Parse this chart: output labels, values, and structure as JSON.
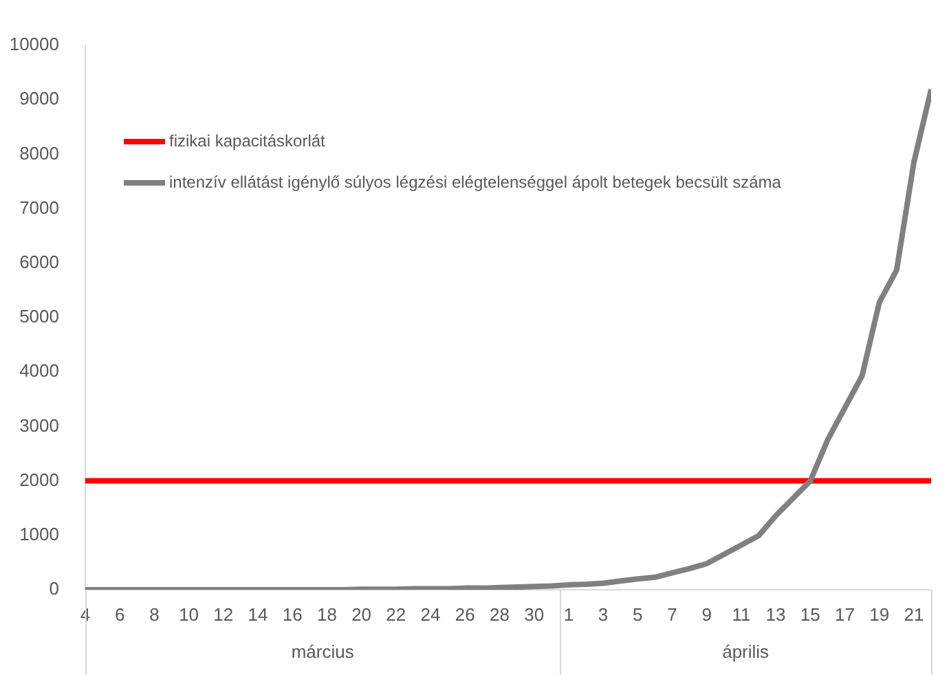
{
  "chart_data": {
    "type": "line",
    "x": [
      "--03-04",
      "--03-05",
      "--03-06",
      "--03-07",
      "--03-08",
      "--03-09",
      "--03-10",
      "--03-11",
      "--03-12",
      "--03-13",
      "--03-14",
      "--03-15",
      "--03-16",
      "--03-17",
      "--03-18",
      "--03-19",
      "--03-20",
      "--03-21",
      "--03-22",
      "--03-23",
      "--03-24",
      "--03-25",
      "--03-26",
      "--03-27",
      "--03-28",
      "--03-29",
      "--03-30",
      "--03-31",
      "--04-01",
      "--04-02",
      "--04-03",
      "--04-04",
      "--04-05",
      "--04-06",
      "--04-07",
      "--04-08",
      "--04-09",
      "--04-10",
      "--04-11",
      "--04-12",
      "--04-13",
      "--04-14",
      "--04-15",
      "--04-16",
      "--04-17",
      "--04-18",
      "--04-19",
      "--04-20",
      "--04-21",
      "--04-22"
    ],
    "series": [
      {
        "name": "fizikai kapacitáskorlát",
        "color": "#ff0000",
        "values": [
          2000,
          2000,
          2000,
          2000,
          2000,
          2000,
          2000,
          2000,
          2000,
          2000,
          2000,
          2000,
          2000,
          2000,
          2000,
          2000,
          2000,
          2000,
          2000,
          2000,
          2000,
          2000,
          2000,
          2000,
          2000,
          2000,
          2000,
          2000,
          2000,
          2000,
          2000,
          2000,
          2000,
          2000,
          2000,
          2000,
          2000,
          2000,
          2000,
          2000,
          2000,
          2000,
          2000,
          2000,
          2000,
          2000,
          2000,
          2000,
          2000,
          2000
        ]
      },
      {
        "name": "intenzív ellátást igénylő súlyos légzési elégtelenséggel ápolt betegek becsült száma",
        "color": "#808080",
        "values": [
          0,
          0,
          0,
          0,
          0,
          0,
          0,
          0,
          0,
          0,
          0,
          0,
          0,
          0,
          0,
          0,
          10,
          10,
          10,
          20,
          20,
          20,
          30,
          30,
          40,
          50,
          60,
          70,
          90,
          100,
          120,
          160,
          200,
          230,
          310,
          390,
          480,
          650,
          820,
          990,
          1360,
          1680,
          2000,
          2750,
          3340,
          3930,
          5280,
          5870,
          7850,
          9190
        ]
      }
    ],
    "xlim": [
      "--03-04",
      "--04-22"
    ],
    "xticks": [
      {
        "value": "--03-04",
        "label": "4"
      },
      {
        "value": "--03-06",
        "label": "6"
      },
      {
        "value": "--03-08",
        "label": "8"
      },
      {
        "value": "--03-10",
        "label": "10"
      },
      {
        "value": "--03-12",
        "label": "12"
      },
      {
        "value": "--03-14",
        "label": "14"
      },
      {
        "value": "--03-16",
        "label": "16"
      },
      {
        "value": "--03-18",
        "label": "18"
      },
      {
        "value": "--03-20",
        "label": "20"
      },
      {
        "value": "--03-22",
        "label": "22"
      },
      {
        "value": "--03-24",
        "label": "24"
      },
      {
        "value": "--03-26",
        "label": "26"
      },
      {
        "value": "--03-28",
        "label": "28"
      },
      {
        "value": "--03-30",
        "label": "30"
      },
      {
        "value": "--04-01",
        "label": "1"
      },
      {
        "value": "--04-03",
        "label": "3"
      },
      {
        "value": "--04-05",
        "label": "5"
      },
      {
        "value": "--04-07",
        "label": "7"
      },
      {
        "value": "--04-09",
        "label": "9"
      },
      {
        "value": "--04-11",
        "label": "11"
      },
      {
        "value": "--04-13",
        "label": "13"
      },
      {
        "value": "--04-15",
        "label": "15"
      },
      {
        "value": "--04-17",
        "label": "17"
      },
      {
        "value": "--04-19",
        "label": "19"
      },
      {
        "value": "--04-21",
        "label": "21"
      }
    ],
    "ylim": [
      0,
      10000
    ],
    "yticks": [
      0,
      1000,
      2000,
      3000,
      4000,
      5000,
      6000,
      7000,
      8000,
      9000,
      10000
    ],
    "annotations": [
      "március",
      "április"
    ],
    "grid": false,
    "legend": "top left"
  }
}
